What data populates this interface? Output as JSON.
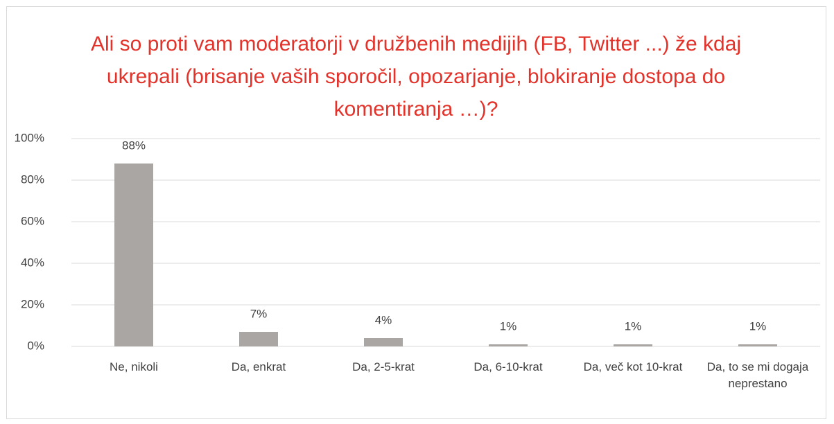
{
  "chart_data": {
    "type": "bar",
    "title": "Ali so proti vam moderatorji v družbenih medijih (FB, Twitter ...)  že kdaj ukrepali (brisanje vaših sporočil, opozarjanje, blokiranje dostopa do komentiranja …)?",
    "categories": [
      "Ne, nikoli",
      "Da, enkrat",
      "Da, 2-5-krat",
      "Da, 6-10-krat",
      "Da, več kot 10-krat",
      "Da, to se mi dogaja neprestano"
    ],
    "values": [
      88,
      7,
      4,
      1,
      1,
      1
    ],
    "value_labels": [
      "88%",
      "7%",
      "4%",
      "1%",
      "1%",
      "1%"
    ],
    "color": "#aaa6a4",
    "ylim": [
      0,
      100
    ],
    "yticks": [
      {
        "value": 0,
        "label": "0%"
      },
      {
        "value": 20,
        "label": "20%"
      },
      {
        "value": 40,
        "label": "40%"
      },
      {
        "value": 60,
        "label": "60%"
      },
      {
        "value": 80,
        "label": "80%"
      },
      {
        "value": 100,
        "label": "100%"
      }
    ],
    "grid": true
  }
}
